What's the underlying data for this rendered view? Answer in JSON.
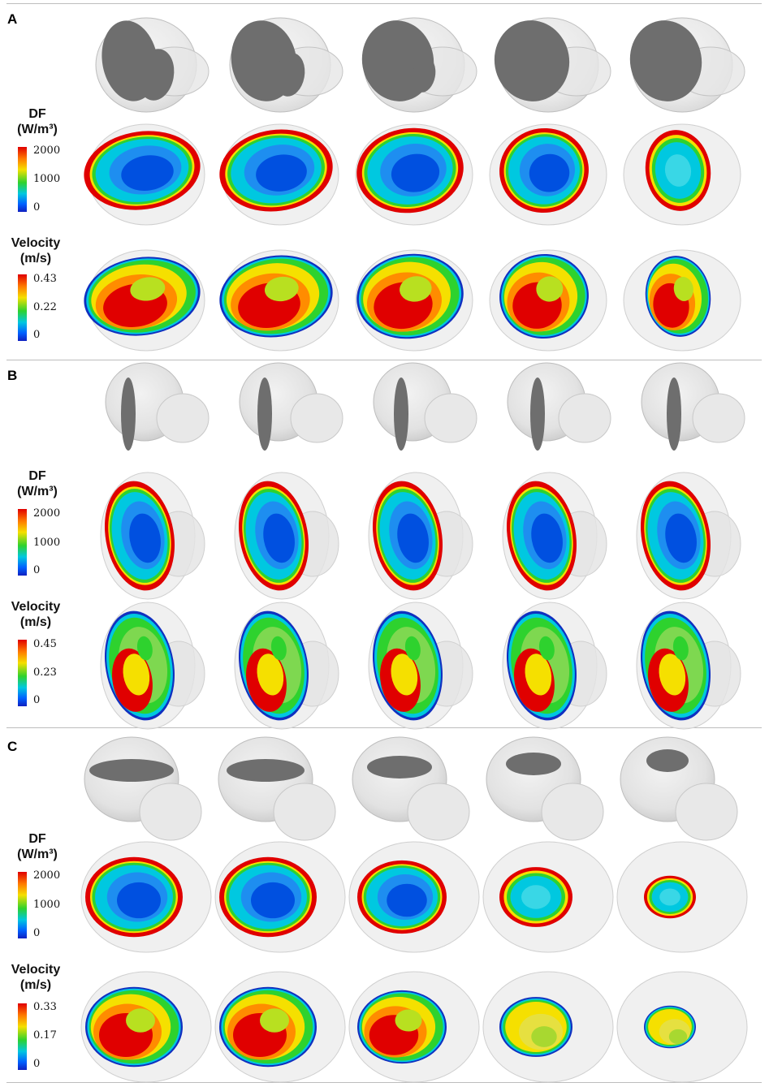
{
  "panels": [
    {
      "label": "A",
      "df": {
        "title_line1": "DF",
        "title_line2": "(W/m³)",
        "ticks": [
          "2000",
          "1000",
          "0"
        ]
      },
      "velocity": {
        "title_line1": "Velocity",
        "title_line2": "(m/s)",
        "ticks": [
          "0.43",
          "0.22",
          "0"
        ]
      }
    },
    {
      "label": "B",
      "df": {
        "title_line1": "DF",
        "title_line2": "(W/m³)",
        "ticks": [
          "2000",
          "1000",
          "0"
        ]
      },
      "velocity": {
        "title_line1": "Velocity",
        "title_line2": "(m/s)",
        "ticks": [
          "0.45",
          "0.23",
          "0"
        ]
      }
    },
    {
      "label": "C",
      "df": {
        "title_line1": "DF",
        "title_line2": "(W/m³)",
        "ticks": [
          "2000",
          "1000",
          "0"
        ]
      },
      "velocity": {
        "title_line1": "Velocity",
        "title_line2": "(m/s)",
        "ticks": [
          "0.33",
          "0.17",
          "0"
        ]
      }
    }
  ],
  "colors": {
    "hot": "#e00000",
    "warm": "#f5e000",
    "mid": "#2ed22e",
    "cool": "#00c8e0",
    "cold": "#0050e0",
    "shell": "#d9d9d9",
    "plane": "#6e6e6e"
  }
}
